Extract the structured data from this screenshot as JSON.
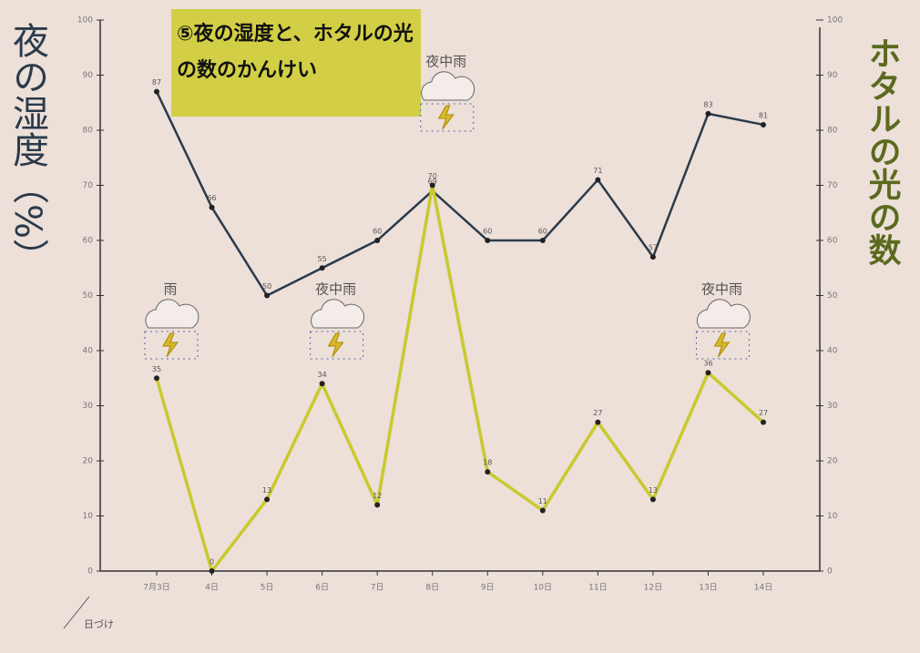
{
  "chart_data": {
    "type": "line",
    "title": "⑤夜の湿度と、ホタルの光の数のかんけい",
    "y_label": "夜の湿度（%）",
    "y2_label": "ホタルの光の数",
    "x_label": "日づけ",
    "categories": [
      "7月3日",
      "4日",
      "5日",
      "6日",
      "7日",
      "8日",
      "9日",
      "10日",
      "11日",
      "12日",
      "13日",
      "14日"
    ],
    "series": [
      {
        "color": "#2b3a4a",
        "values": [
          87,
          66,
          50,
          55,
          60,
          69,
          60,
          60,
          71,
          57,
          83,
          81
        ]
      },
      {
        "color": "#c9c92e",
        "axis": "y2",
        "values": [
          35,
          0,
          13,
          34,
          12,
          70,
          18,
          11,
          27,
          13,
          36,
          27
        ]
      }
    ],
    "ylim": [
      0,
      100
    ],
    "yticks": [
      0,
      10,
      20,
      30,
      40,
      50,
      60,
      70,
      80,
      90,
      100
    ],
    "y2lim": [
      0,
      100
    ],
    "y2ticks": [
      0,
      10,
      20,
      30,
      40,
      50,
      60,
      70,
      80,
      90,
      100
    ],
    "annotations": [
      {
        "text": "雨",
        "x": "7月3日"
      },
      {
        "text": "夜中雨",
        "x": "6日"
      },
      {
        "text": "夜中雨",
        "x": "8日"
      },
      {
        "text": "夜中雨",
        "x": "13日"
      }
    ]
  }
}
